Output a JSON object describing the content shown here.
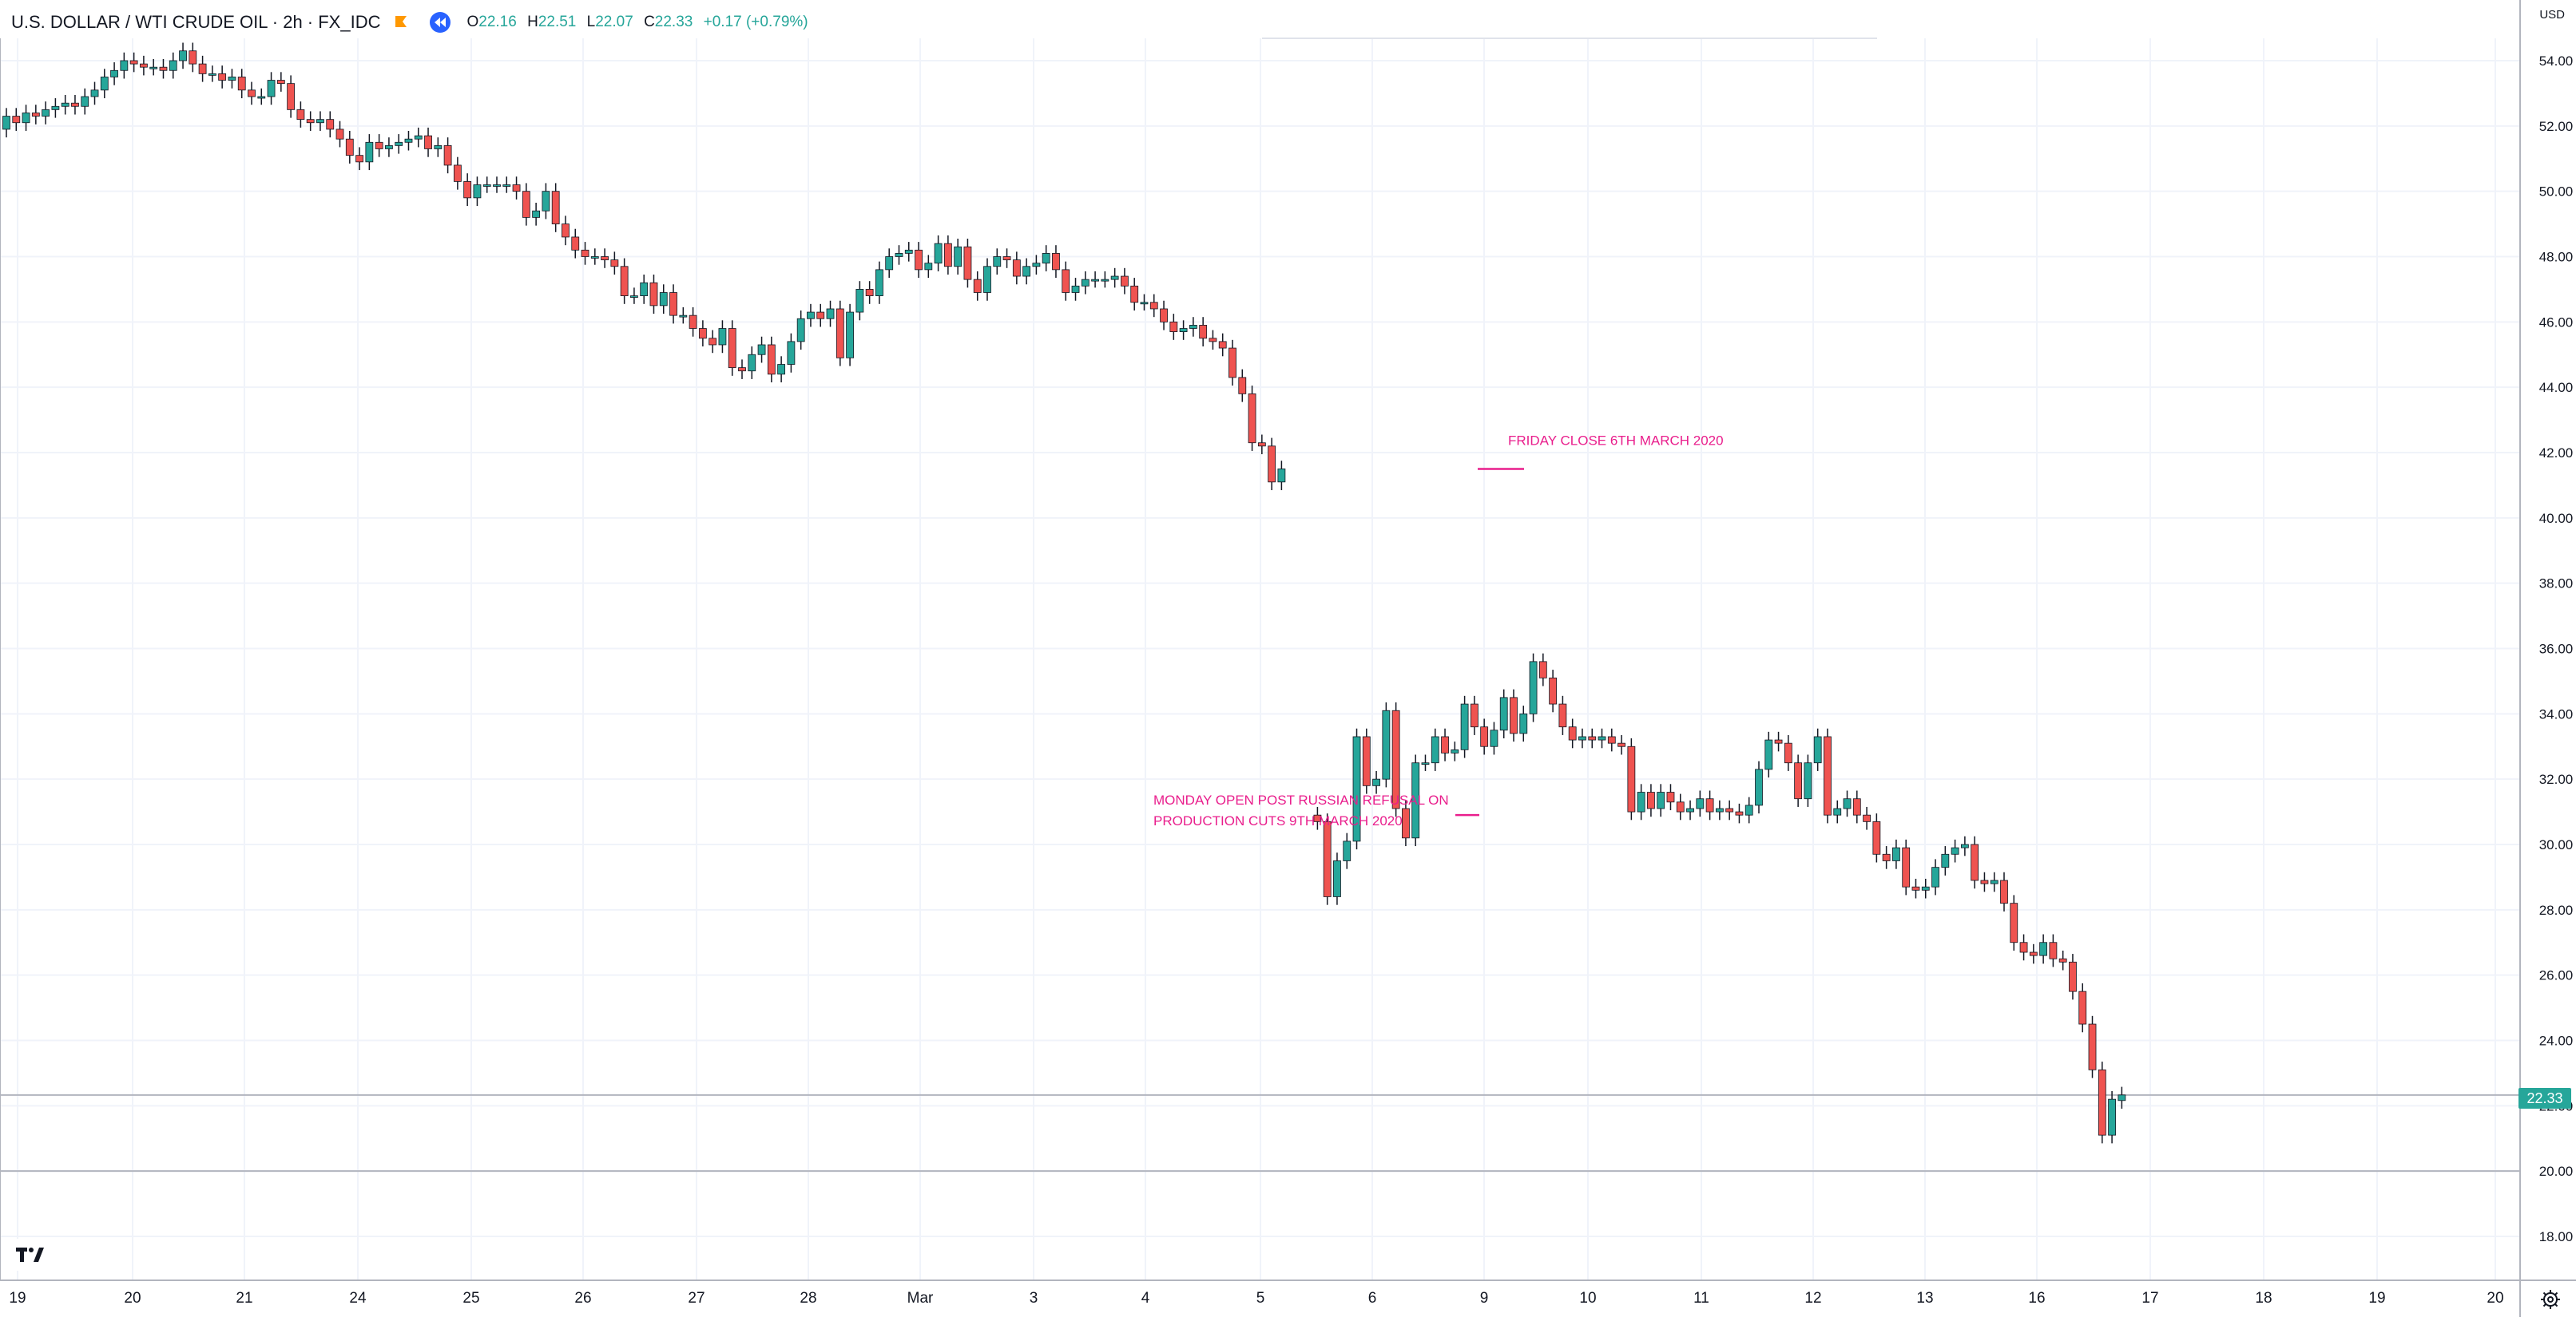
{
  "header": {
    "symbol": "U.S. DOLLAR / WTI CRUDE OIL · 2h · FX_IDC",
    "open_key": "O",
    "open": "22.16",
    "high_key": "H",
    "high": "22.51",
    "low_key": "L",
    "low": "22.07",
    "close_key": "C",
    "close": "22.33",
    "change": "+0.17 (+0.79%)"
  },
  "currency_label": "USD",
  "last_price_tag": "22.33",
  "colors": {
    "up": "#26a69a",
    "down": "#ef5350",
    "annotation": "#e91e8c",
    "grid": "#f0f3fa",
    "axis_text": "#131722"
  },
  "icons": [
    "flag-icon",
    "replay-icon",
    "tradingview-logo-icon",
    "settings-gear-icon"
  ],
  "chart_data": {
    "type": "candlestick",
    "title": "U.S. DOLLAR / WTI CRUDE OIL · 2h · FX_IDC",
    "y_ticks": [
      "18.00",
      "20.00",
      "22.00",
      "24.00",
      "26.00",
      "28.00",
      "30.00",
      "32.00",
      "34.00",
      "36.00",
      "38.00",
      "40.00",
      "42.00",
      "44.00",
      "46.00",
      "48.00",
      "50.00",
      "52.00",
      "54.00"
    ],
    "ylim": [
      16.9,
      55.4
    ],
    "x_ticks": [
      "19",
      "20",
      "21",
      "24",
      "25",
      "26",
      "27",
      "28",
      "Mar",
      "3",
      "4",
      "5",
      "6",
      "9",
      "10",
      "11",
      "12",
      "13",
      "16",
      "17",
      "18",
      "19",
      "20"
    ],
    "grid": true,
    "horizontal_lines": [
      22.33,
      20.0
    ],
    "series": [
      {
        "values": [
          [
            51.9,
            52.3
          ],
          [
            52.3,
            52.1
          ],
          [
            52.1,
            52.4
          ],
          [
            52.4,
            52.3
          ],
          [
            52.3,
            52.5
          ],
          [
            52.5,
            52.6
          ],
          [
            52.6,
            52.7
          ],
          [
            52.7,
            52.6
          ],
          [
            52.6,
            52.9
          ],
          [
            52.9,
            53.1
          ],
          [
            53.1,
            53.5
          ],
          [
            53.5,
            53.7
          ],
          [
            53.7,
            54.0
          ],
          [
            54.0,
            53.9
          ],
          [
            53.9,
            53.8
          ],
          [
            53.8,
            53.8
          ],
          [
            53.8,
            53.7
          ],
          [
            53.7,
            54.0
          ],
          [
            54.0,
            54.3
          ],
          [
            54.3,
            53.9
          ],
          [
            53.9,
            53.6
          ],
          [
            53.6,
            53.6
          ],
          [
            53.6,
            53.4
          ],
          [
            53.4,
            53.5
          ],
          [
            53.5,
            53.1
          ],
          [
            53.1,
            52.9
          ],
          [
            52.9,
            52.9
          ],
          [
            52.9,
            53.4
          ],
          [
            53.4,
            53.3
          ],
          [
            53.3,
            52.5
          ],
          [
            52.5,
            52.2
          ],
          [
            52.2,
            52.1
          ],
          [
            52.1,
            52.2
          ],
          [
            52.2,
            51.9
          ],
          [
            51.9,
            51.6
          ],
          [
            51.6,
            51.1
          ],
          [
            51.1,
            50.9
          ],
          [
            50.9,
            51.5
          ],
          [
            51.5,
            51.3
          ],
          [
            51.3,
            51.4
          ],
          [
            51.4,
            51.5
          ],
          [
            51.5,
            51.6
          ],
          [
            51.6,
            51.7
          ],
          [
            51.7,
            51.3
          ],
          [
            51.3,
            51.4
          ],
          [
            51.4,
            50.8
          ],
          [
            50.8,
            50.3
          ],
          [
            50.3,
            49.8
          ],
          [
            49.8,
            50.2
          ],
          [
            50.2,
            50.2
          ],
          [
            50.2,
            50.2
          ],
          [
            50.2,
            50.2
          ],
          [
            50.2,
            50.0
          ],
          [
            50.0,
            49.2
          ],
          [
            49.2,
            49.4
          ],
          [
            49.4,
            50.0
          ],
          [
            50.0,
            49.0
          ],
          [
            49.0,
            48.6
          ],
          [
            48.6,
            48.2
          ],
          [
            48.2,
            48.0
          ],
          [
            48.0,
            48.0
          ],
          [
            48.0,
            47.9
          ],
          [
            47.9,
            47.7
          ],
          [
            47.7,
            46.8
          ],
          [
            46.8,
            46.8
          ],
          [
            46.8,
            47.2
          ],
          [
            47.2,
            46.5
          ],
          [
            46.5,
            46.9
          ],
          [
            46.9,
            46.2
          ],
          [
            46.2,
            46.2
          ],
          [
            46.2,
            45.8
          ],
          [
            45.8,
            45.5
          ],
          [
            45.5,
            45.3
          ],
          [
            45.3,
            45.8
          ],
          [
            45.8,
            44.6
          ],
          [
            44.6,
            44.5
          ],
          [
            44.5,
            45.0
          ],
          [
            45.0,
            45.3
          ],
          [
            45.3,
            44.4
          ],
          [
            44.4,
            44.7
          ],
          [
            44.7,
            45.4
          ],
          [
            45.4,
            46.1
          ],
          [
            46.1,
            46.3
          ],
          [
            46.3,
            46.1
          ],
          [
            46.1,
            46.4
          ],
          [
            46.4,
            44.9
          ],
          [
            44.9,
            46.3
          ],
          [
            46.3,
            47.0
          ],
          [
            47.0,
            46.8
          ],
          [
            46.8,
            47.6
          ],
          [
            47.6,
            48.0
          ],
          [
            48.0,
            48.1
          ],
          [
            48.1,
            48.2
          ],
          [
            48.2,
            47.6
          ],
          [
            47.6,
            47.8
          ],
          [
            47.8,
            48.4
          ],
          [
            48.4,
            47.7
          ],
          [
            47.7,
            48.3
          ],
          [
            48.3,
            47.3
          ],
          [
            47.3,
            46.9
          ],
          [
            46.9,
            47.7
          ],
          [
            47.7,
            48.0
          ],
          [
            48.0,
            47.9
          ],
          [
            47.9,
            47.4
          ],
          [
            47.4,
            47.7
          ],
          [
            47.7,
            47.8
          ],
          [
            47.8,
            48.1
          ],
          [
            48.1,
            47.6
          ],
          [
            47.6,
            46.9
          ],
          [
            46.9,
            47.1
          ],
          [
            47.1,
            47.3
          ],
          [
            47.3,
            47.3
          ],
          [
            47.3,
            47.3
          ],
          [
            47.3,
            47.4
          ],
          [
            47.4,
            47.1
          ],
          [
            47.1,
            46.6
          ],
          [
            46.6,
            46.6
          ],
          [
            46.6,
            46.4
          ],
          [
            46.4,
            46.0
          ],
          [
            46.0,
            45.7
          ],
          [
            45.7,
            45.8
          ],
          [
            45.8,
            45.9
          ],
          [
            45.9,
            45.5
          ],
          [
            45.5,
            45.4
          ],
          [
            45.4,
            45.2
          ],
          [
            45.2,
            44.3
          ],
          [
            44.3,
            43.8
          ],
          [
            43.8,
            42.3
          ],
          [
            42.3,
            42.2
          ],
          [
            42.2,
            41.1
          ],
          [
            41.1,
            41.5
          ],
          [
            30.9,
            30.7
          ],
          [
            30.7,
            28.4
          ],
          [
            28.4,
            29.5
          ],
          [
            29.5,
            30.1
          ],
          [
            30.1,
            33.3
          ],
          [
            33.3,
            31.8
          ],
          [
            31.8,
            32.0
          ],
          [
            32.0,
            34.1
          ],
          [
            34.1,
            31.1
          ],
          [
            31.1,
            30.2
          ],
          [
            30.2,
            32.5
          ],
          [
            32.5,
            32.5
          ],
          [
            32.5,
            33.3
          ],
          [
            33.3,
            32.8
          ],
          [
            32.8,
            32.9
          ],
          [
            32.9,
            34.3
          ],
          [
            34.3,
            33.6
          ],
          [
            33.6,
            33.0
          ],
          [
            33.0,
            33.5
          ],
          [
            33.5,
            34.5
          ],
          [
            34.5,
            33.4
          ],
          [
            33.4,
            34.0
          ],
          [
            34.0,
            35.6
          ],
          [
            35.6,
            35.1
          ],
          [
            35.1,
            34.3
          ],
          [
            34.3,
            33.6
          ],
          [
            33.6,
            33.2
          ],
          [
            33.2,
            33.3
          ],
          [
            33.3,
            33.2
          ],
          [
            33.2,
            33.3
          ],
          [
            33.3,
            33.1
          ],
          [
            33.1,
            33.0
          ],
          [
            33.0,
            31.0
          ],
          [
            31.0,
            31.6
          ],
          [
            31.6,
            31.1
          ],
          [
            31.1,
            31.6
          ],
          [
            31.6,
            31.3
          ],
          [
            31.3,
            31.0
          ],
          [
            31.0,
            31.1
          ],
          [
            31.1,
            31.4
          ],
          [
            31.4,
            31.0
          ],
          [
            31.0,
            31.1
          ],
          [
            31.1,
            31.0
          ],
          [
            31.0,
            30.9
          ],
          [
            30.9,
            31.2
          ],
          [
            31.2,
            32.3
          ],
          [
            32.3,
            33.2
          ],
          [
            33.2,
            33.1
          ],
          [
            33.1,
            32.5
          ],
          [
            32.5,
            31.4
          ],
          [
            31.4,
            32.5
          ],
          [
            32.5,
            33.3
          ],
          [
            33.3,
            30.9
          ],
          [
            30.9,
            31.1
          ],
          [
            31.1,
            31.4
          ],
          [
            31.4,
            30.9
          ],
          [
            30.9,
            30.7
          ],
          [
            30.7,
            29.7
          ],
          [
            29.7,
            29.5
          ],
          [
            29.5,
            29.9
          ],
          [
            29.9,
            28.7
          ],
          [
            28.7,
            28.6
          ],
          [
            28.6,
            28.7
          ],
          [
            28.7,
            29.3
          ],
          [
            29.3,
            29.7
          ],
          [
            29.7,
            29.9
          ],
          [
            29.9,
            30.0
          ],
          [
            30.0,
            28.9
          ],
          [
            28.9,
            28.8
          ],
          [
            28.8,
            28.9
          ],
          [
            28.9,
            28.2
          ],
          [
            28.2,
            27.0
          ],
          [
            27.0,
            26.7
          ],
          [
            26.7,
            26.6
          ],
          [
            26.6,
            27.0
          ],
          [
            27.0,
            26.5
          ],
          [
            26.5,
            26.4
          ],
          [
            26.4,
            25.5
          ],
          [
            25.5,
            24.5
          ],
          [
            24.5,
            23.1
          ],
          [
            23.1,
            21.1
          ],
          [
            21.1,
            22.2
          ],
          [
            22.16,
            22.33
          ]
        ]
      }
    ],
    "annotations": [
      {
        "text": "FRIDAY CLOSE 6TH MARCH 2020"
      },
      {
        "text": "MONDAY OPEN POST RUSSIAN REFUSAL ON PRODUCTION CUTS 9TH MARCH 2020"
      }
    ]
  }
}
